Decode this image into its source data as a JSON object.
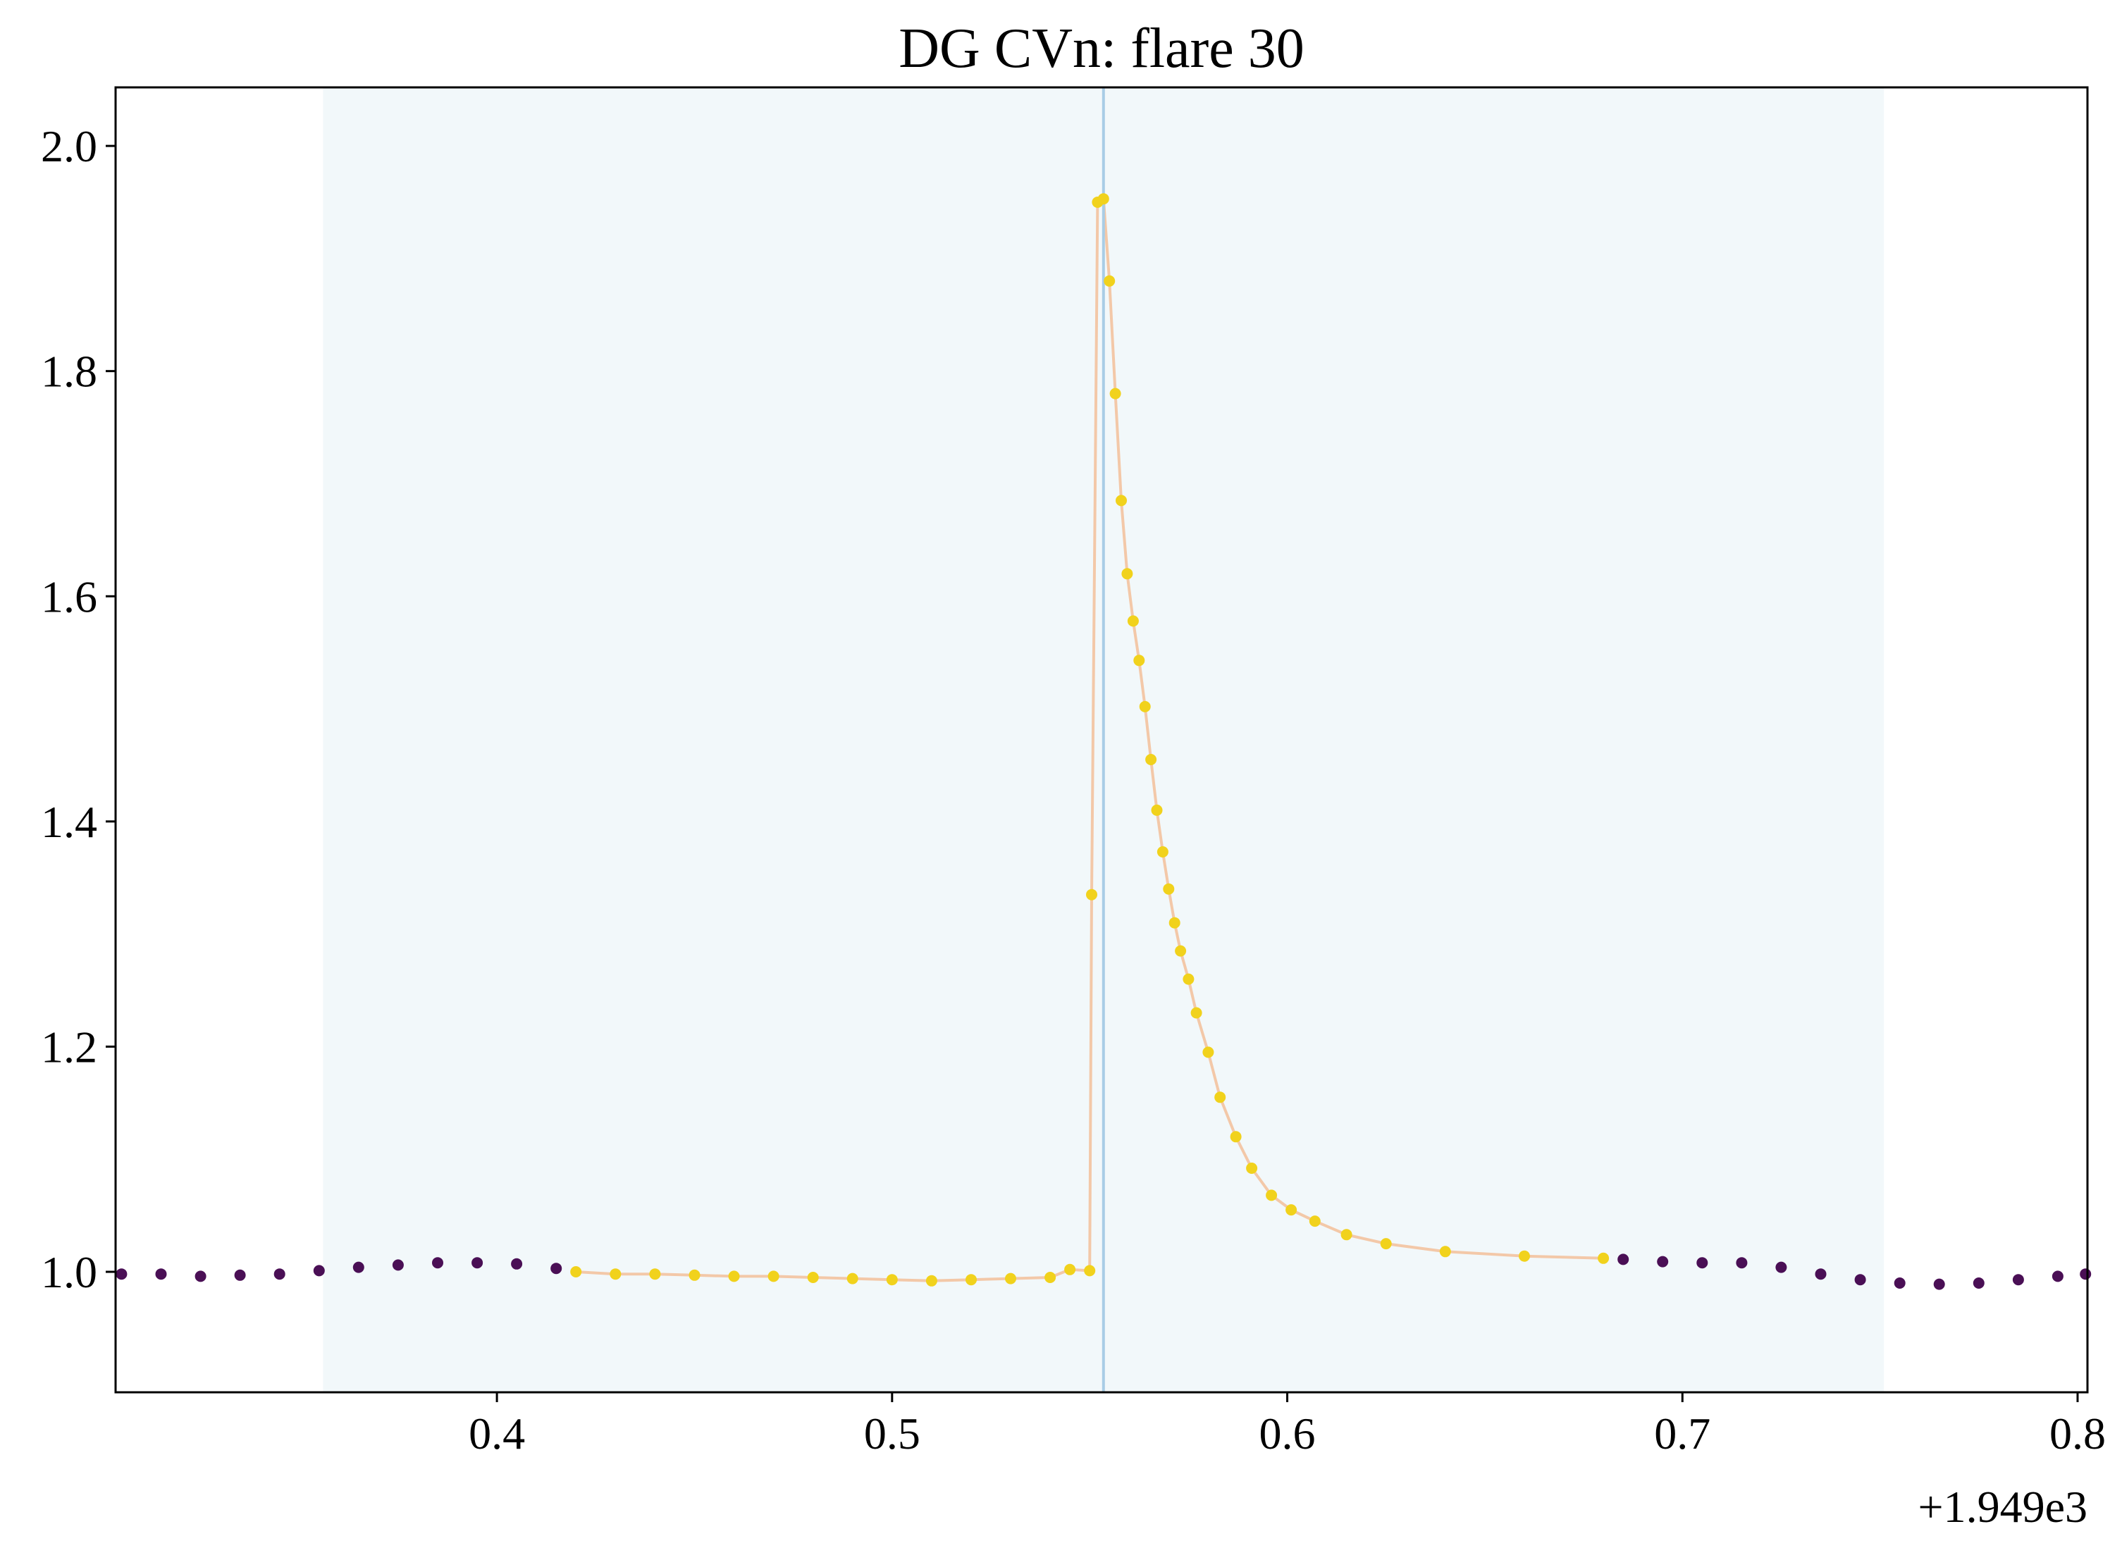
{
  "chart_data": {
    "type": "scatter",
    "title": "DG CVn: flare 30",
    "xlabel": "",
    "ylabel": "",
    "x_offset_label": "+1.949e3",
    "xlim": [
      0.3035,
      0.8025
    ],
    "ylim": [
      0.893,
      2.052
    ],
    "x_ticks": [
      0.4,
      0.5,
      0.6,
      0.7,
      0.8
    ],
    "x_tick_labels": [
      "0.4",
      "0.5",
      "0.6",
      "0.7",
      "0.8"
    ],
    "y_ticks": [
      1.0,
      1.2,
      1.4,
      1.6,
      1.8,
      2.0
    ],
    "y_tick_labels": [
      "1.0",
      "1.2",
      "1.4",
      "1.6",
      "1.8",
      "2.0"
    ],
    "grid": false,
    "shaded_region": [
      0.356,
      0.751
    ],
    "flare_peak_line": 0.5535,
    "colors": {
      "shade": "#f2f8fa",
      "peak_line": "#a9cde6",
      "connect_line": "#f3c8a8",
      "flare": "#f1d21c",
      "quiet": "#4a0f55",
      "mid": "#3a8a8c"
    },
    "series": [
      {
        "role": "quiet_before",
        "color": "#4a0f55",
        "x": [
          0.305,
          0.315,
          0.325,
          0.335,
          0.345,
          0.355,
          0.365,
          0.375,
          0.385,
          0.395,
          0.405,
          0.415
        ],
        "y": [
          0.998,
          0.998,
          0.996,
          0.997,
          0.998,
          1.001,
          1.004,
          1.006,
          1.008,
          1.008,
          1.007,
          1.003
        ]
      },
      {
        "role": "flare_region",
        "color": "#f1d21c",
        "x": [
          0.42,
          0.43,
          0.44,
          0.45,
          0.46,
          0.47,
          0.48,
          0.49,
          0.5,
          0.51,
          0.52,
          0.53,
          0.54,
          0.545,
          0.55,
          0.5505,
          0.552,
          0.5535,
          0.555,
          0.5565,
          0.558,
          0.5595,
          0.561,
          0.5625,
          0.564,
          0.5655,
          0.567,
          0.5685,
          0.57,
          0.5715,
          0.573,
          0.575,
          0.577,
          0.58,
          0.583,
          0.587,
          0.591,
          0.596,
          0.601,
          0.607,
          0.615,
          0.625,
          0.64,
          0.66,
          0.68
        ],
        "y": [
          1.0,
          0.998,
          0.998,
          0.997,
          0.996,
          0.996,
          0.995,
          0.994,
          0.993,
          0.992,
          0.993,
          0.994,
          0.995,
          1.002,
          1.001,
          1.335,
          1.95,
          1.953,
          1.88,
          1.78,
          1.685,
          1.62,
          1.578,
          1.543,
          1.502,
          1.455,
          1.41,
          1.373,
          1.34,
          1.31,
          1.285,
          1.26,
          1.23,
          1.195,
          1.155,
          1.12,
          1.092,
          1.068,
          1.055,
          1.045,
          1.033,
          1.025,
          1.018,
          1.014,
          1.012
        ]
      },
      {
        "role": "quiet_after",
        "color": "#4a0f55",
        "x": [
          0.685,
          0.695,
          0.705,
          0.715,
          0.725,
          0.735,
          0.745,
          0.755,
          0.765,
          0.775,
          0.785,
          0.795,
          0.802
        ],
        "y": [
          1.011,
          1.009,
          1.008,
          1.008,
          1.004,
          0.998,
          0.993,
          0.99,
          0.989,
          0.99,
          0.993,
          0.996,
          0.998
        ]
      }
    ]
  }
}
